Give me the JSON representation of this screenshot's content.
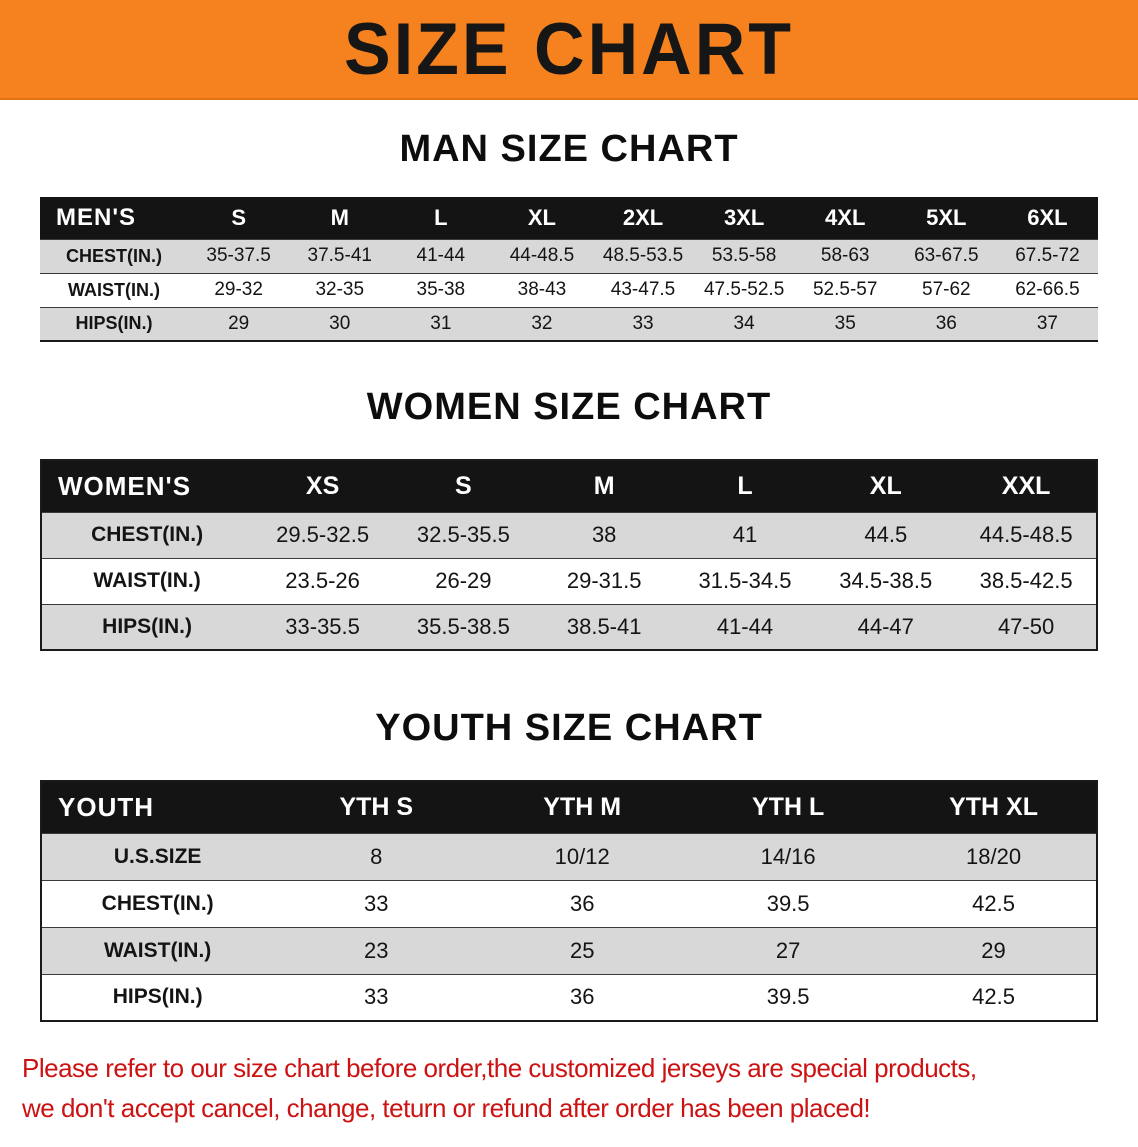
{
  "banner": {
    "title": "SIZE CHART"
  },
  "sections": {
    "men": {
      "heading": "MAN SIZE CHART",
      "table": {
        "header": [
          "MEN'S",
          "S",
          "M",
          "L",
          "XL",
          "2XL",
          "3XL",
          "4XL",
          "5XL",
          "6XL"
        ],
        "rows": [
          [
            "CHEST(IN.)",
            "35-37.5",
            "37.5-41",
            "41-44",
            "44-48.5",
            "48.5-53.5",
            "53.5-58",
            "58-63",
            "63-67.5",
            "67.5-72"
          ],
          [
            "WAIST(IN.)",
            "29-32",
            "32-35",
            "35-38",
            "38-43",
            "43-47.5",
            "47.5-52.5",
            "52.5-57",
            "57-62",
            "62-66.5"
          ],
          [
            "HIPS(IN.)",
            "29",
            "30",
            "31",
            "32",
            "33",
            "34",
            "35",
            "36",
            "37"
          ]
        ]
      }
    },
    "women": {
      "heading": "WOMEN SIZE CHART",
      "table": {
        "header": [
          "WOMEN'S",
          "XS",
          "S",
          "M",
          "L",
          "XL",
          "XXL"
        ],
        "rows": [
          [
            "CHEST(IN.)",
            "29.5-32.5",
            "32.5-35.5",
            "38",
            "41",
            "44.5",
            "44.5-48.5"
          ],
          [
            "WAIST(IN.)",
            "23.5-26",
            "26-29",
            "29-31.5",
            "31.5-34.5",
            "34.5-38.5",
            "38.5-42.5"
          ],
          [
            "HIPS(IN.)",
            "33-35.5",
            "35.5-38.5",
            "38.5-41",
            "41-44",
            "44-47",
            "47-50"
          ]
        ]
      }
    },
    "youth": {
      "heading": "YOUTH SIZE CHART",
      "table": {
        "header": [
          "YOUTH",
          "YTH S",
          "YTH M",
          "YTH L",
          "YTH XL"
        ],
        "rows": [
          [
            "U.S.SIZE",
            "8",
            "10/12",
            "14/16",
            "18/20"
          ],
          [
            "CHEST(IN.)",
            "33",
            "36",
            "39.5",
            "42.5"
          ],
          [
            "WAIST(IN.)",
            "23",
            "25",
            "27",
            "29"
          ],
          [
            "HIPS(IN.)",
            "33",
            "36",
            "39.5",
            "42.5"
          ]
        ]
      }
    }
  },
  "footer": {
    "lines": [
      "Please refer to our size chart before order,the customized jerseys are special products,",
      "we don't accept cancel, change, teturn or refund after order has been placed!"
    ]
  },
  "colors": {
    "banner_bg": "#f5821f",
    "table_header_bg": "#141414",
    "row_stripe": "#d8d8d8",
    "footer_text": "#cc1212"
  }
}
